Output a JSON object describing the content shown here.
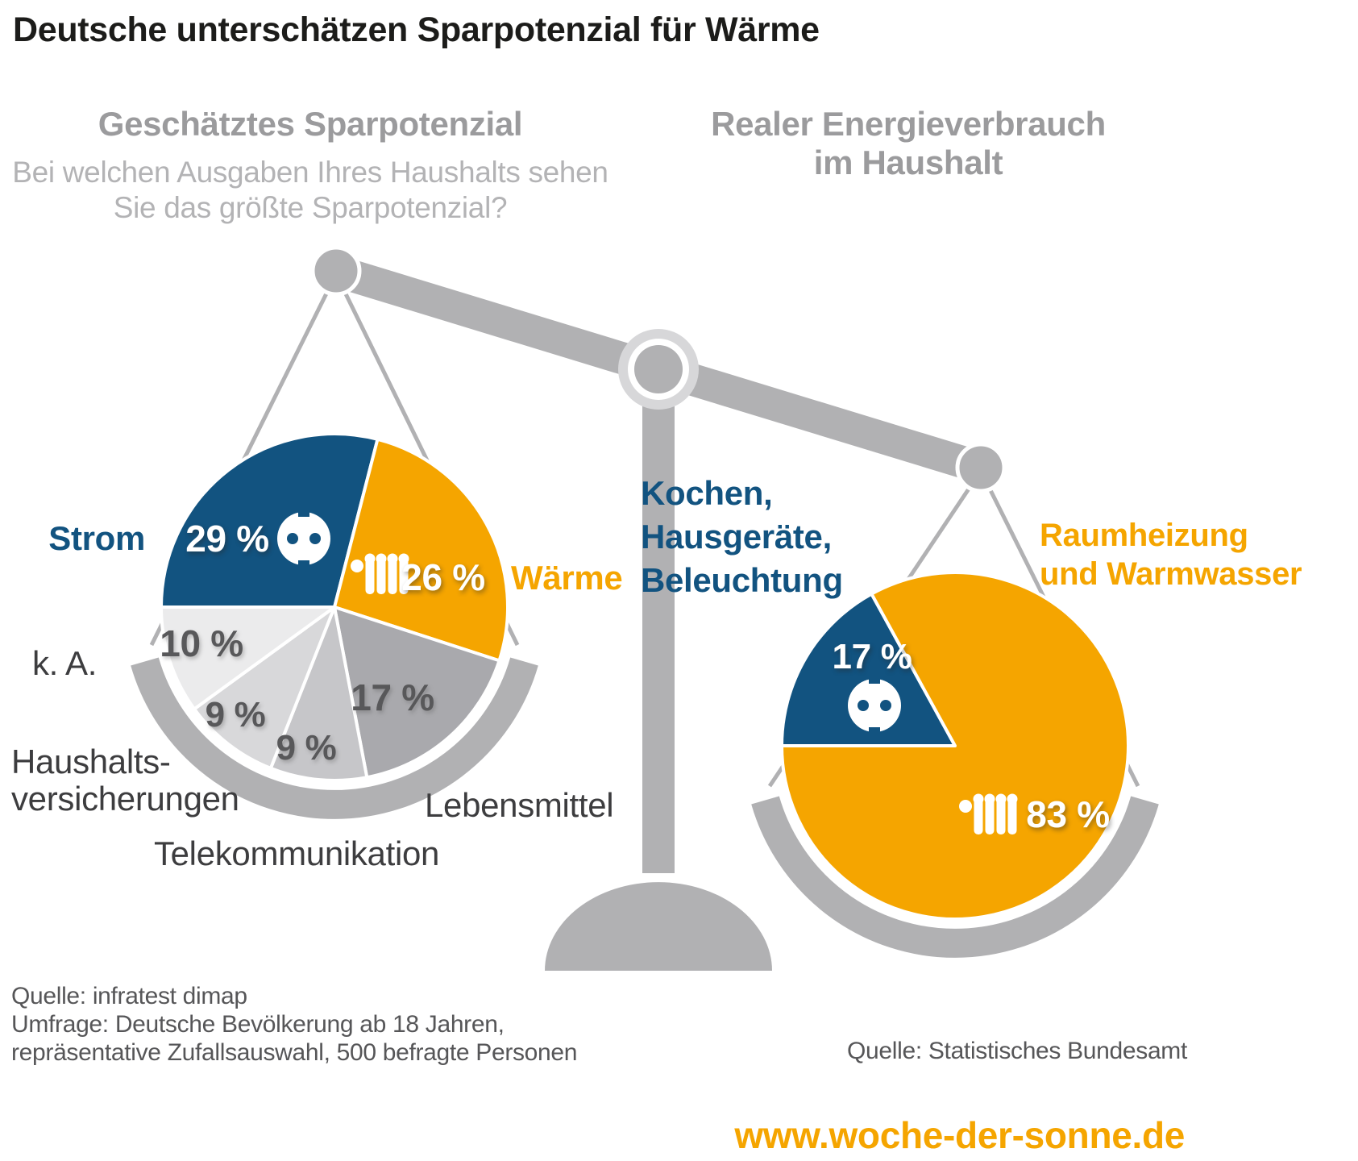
{
  "title": "Deutsche unterschätzen Sparpotenzial für Wärme",
  "colors": {
    "blue": "#125380",
    "orange": "#f5a500",
    "structure_gray": "#b1b1b3",
    "pivot_ring_gray": "#d7d7d9",
    "percent_label_gray": "#58585a",
    "heading_gray": "#9b9b9d",
    "subtitle_gray": "#b3b3b5",
    "source_text_gray": "#565658"
  },
  "chart_data": [
    {
      "type": "pie",
      "title": "Geschätztes Sparpotenzial",
      "subtitle_line1": "Bei welchen Ausgaben Ihres Haushalts sehen",
      "subtitle_line2": "Sie das größte Sparpotenzial?",
      "unit": "%",
      "total": 100,
      "slices": [
        {
          "id": "strom",
          "label": "Strom",
          "value": 29,
          "value_label": "29 %",
          "color": "#125380",
          "icon": "power-socket-icon"
        },
        {
          "id": "waerme",
          "label": "Wärme",
          "value": 26,
          "value_label": "26 %",
          "color": "#f5a500",
          "icon": "radiator-icon"
        },
        {
          "id": "lebensmittel",
          "label": "Lebensmittel",
          "value": 17,
          "value_label": "17 %",
          "color": "#a9a9ad"
        },
        {
          "id": "telekommunikation",
          "label": "Telekommunikation",
          "value": 9,
          "value_label": "9 %",
          "color": "#c6c6c9"
        },
        {
          "id": "haushaltsversicherungen",
          "label": "Haushaltsversicherungen",
          "label_line1": "Haushalts-",
          "label_line2": "versicherungen",
          "value": 9,
          "value_label": "9 %",
          "color": "#d8d8da"
        },
        {
          "id": "ka",
          "label": "k. A.",
          "value": 10,
          "value_label": "10 %",
          "color": "#ebebec"
        }
      ]
    },
    {
      "type": "pie",
      "title": "Realer Energieverbrauch im Haushalt",
      "title_line1": "Realer Energieverbrauch",
      "title_line2": "im Haushalt",
      "unit": "%",
      "total": 100,
      "slices": [
        {
          "id": "kochen-hausgeraete-beleuchtung",
          "label": "Kochen, Hausgeräte, Beleuchtung",
          "label_line1": "Kochen,",
          "label_line2": "Hausgeräte,",
          "label_line3": "Beleuchtung",
          "value": 17,
          "value_label": "17 %",
          "color": "#125380",
          "icon": "power-socket-icon"
        },
        {
          "id": "raumheizung-warmwasser",
          "label": "Raumheizung und Warmwasser",
          "label_line1": "Raumheizung",
          "label_line2": "und Warmwasser",
          "value": 83,
          "value_label": "83 %",
          "color": "#f5a500",
          "icon": "radiator-icon"
        }
      ]
    }
  ],
  "footer": {
    "source_left_line1": "Quelle: infratest dimap",
    "source_left_line2": "Umfrage: Deutsche Bevölkerung ab 18 Jahren,",
    "source_left_line3": "repräsentative Zufallsauswahl, 500 befragte Personen",
    "source_right": "Quelle: Statistisches Bundesamt",
    "website": "www.woche-der-sonne.de"
  }
}
